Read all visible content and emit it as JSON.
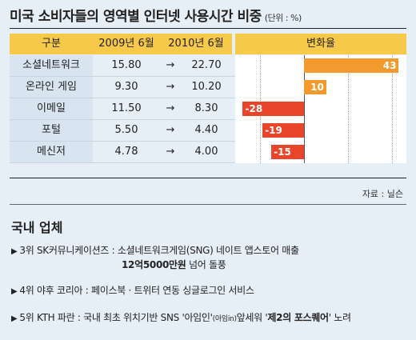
{
  "title": "미국 소비자들의 영역별 인터넷 사용시간 비중",
  "unit": "(단위 : %)",
  "table": {
    "headers": [
      "구분",
      "2009년 6월",
      "2010년 6월",
      "변화율"
    ],
    "arrow": "→",
    "rows": [
      {
        "name": "소셜네트워크",
        "y2009": "15.80",
        "y2010": "22.70",
        "change": "43"
      },
      {
        "name": "온라인 게임",
        "y2009": "9.30",
        "y2010": "10.20",
        "change": "10"
      },
      {
        "name": "이메일",
        "y2009": "11.50",
        "y2010": "8.30",
        "change": "-28"
      },
      {
        "name": "포털",
        "y2009": "5.50",
        "y2010": "4.40",
        "change": "-19"
      },
      {
        "name": "메신저",
        "y2009": "4.78",
        "y2010": "4.00",
        "change": "-15"
      }
    ]
  },
  "chart_data": {
    "type": "bar",
    "categories": [
      "소셜네트워크",
      "온라인 게임",
      "이메일",
      "포털",
      "메신저"
    ],
    "values": [
      43,
      10,
      -28,
      -19,
      -15
    ],
    "series_2009": [
      15.8,
      9.3,
      11.5,
      5.5,
      4.78
    ],
    "series_2010": [
      22.7,
      10.2,
      8.3,
      4.4,
      4.0
    ],
    "title": "미국 소비자들의 영역별 인터넷 사용시간 비중",
    "ylabel": "변화율",
    "xlim": [
      -30,
      45
    ],
    "positive_color": "#f29a2e",
    "negative_color": "#e8452a",
    "grid": true
  },
  "source": "자료 : 닐슨",
  "domestic": {
    "title": "국내 업체",
    "items": [
      {
        "company": "3위 SK커뮤니케이션즈",
        "sep": " : ",
        "text": "소셜네트워크게임(SNG) 네이트 앱스토어 매출",
        "line2_bold": "12억5000만원",
        "line2_rest": " 넘어 돌풍"
      },
      {
        "company": "4위 야후 코리아",
        "sep": " : ",
        "text": "페이스북 · 트위터 연동 싱글로그인 서비스"
      },
      {
        "company": "5위 KTH 파란",
        "sep": " : ",
        "text_pre": "국내 최초 위치기반 SNS '아임인'",
        "text_small": "(아임in)",
        "text_mid": "앞세워 '",
        "text_bold": "제2의 포스퀘어",
        "text_post": "' 노려"
      }
    ]
  }
}
